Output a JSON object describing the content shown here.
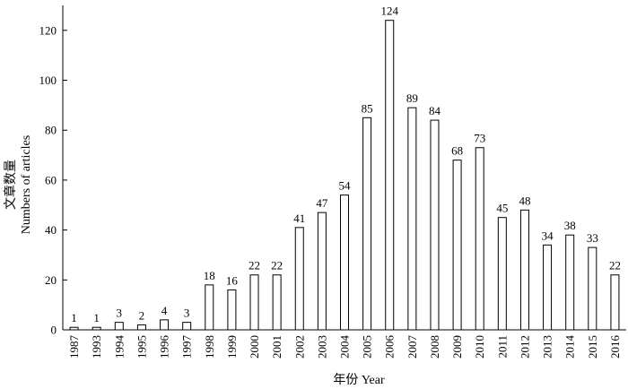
{
  "chart_data": {
    "type": "bar",
    "xlabel": "年份 Year",
    "ylabel_cn": "文章数量",
    "ylabel_en": "Numbers of articles",
    "ylim": [
      0,
      130
    ],
    "yticks": [
      0,
      20,
      40,
      60,
      80,
      100,
      120
    ],
    "categories": [
      "1987",
      "1993",
      "1994",
      "1995",
      "1996",
      "1997",
      "1998",
      "1999",
      "2000",
      "2001",
      "2002",
      "2003",
      "2004",
      "2005",
      "2006",
      "2007",
      "2008",
      "2009",
      "2010",
      "2011",
      "2012",
      "2013",
      "2014",
      "2015",
      "2016"
    ],
    "values": [
      1,
      1,
      3,
      2,
      4,
      3,
      18,
      16,
      22,
      22,
      41,
      47,
      54,
      85,
      124,
      89,
      84,
      68,
      73,
      45,
      48,
      34,
      38,
      33,
      22
    ],
    "grid": false,
    "bar_fill": "#ffffff",
    "bar_stroke": "#000000"
  }
}
